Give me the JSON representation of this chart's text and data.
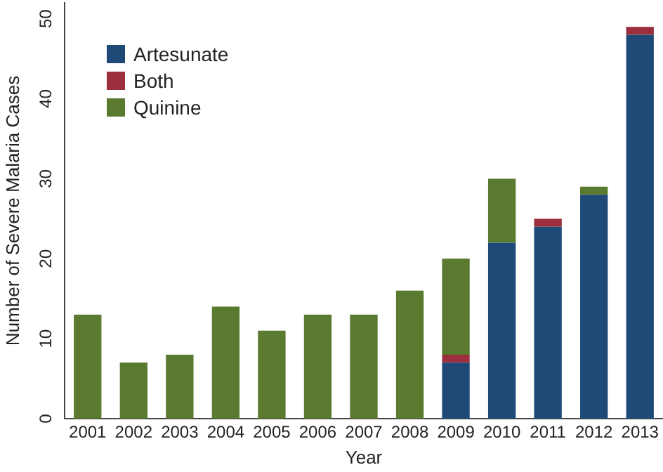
{
  "chart_data": {
    "type": "bar",
    "xlabel": "Year",
    "ylabel": "Number of Severe Malaria Cases",
    "categories": [
      "2001",
      "2002",
      "2003",
      "2004",
      "2005",
      "2006",
      "2007",
      "2008",
      "2009",
      "2010",
      "2011",
      "2012",
      "2013"
    ],
    "stacked": true,
    "series": [
      {
        "name": "Artesunate",
        "color": "#1f4a78",
        "values": [
          null,
          null,
          null,
          null,
          null,
          null,
          null,
          null,
          7,
          22,
          24,
          28,
          48
        ]
      },
      {
        "name": "Both",
        "color": "#9b2f3e",
        "values": [
          null,
          null,
          null,
          null,
          null,
          null,
          null,
          null,
          1,
          null,
          1,
          null,
          1
        ]
      },
      {
        "name": "Quinine",
        "color": "#5a7a2f",
        "values": [
          13,
          7,
          8,
          14,
          11,
          13,
          13,
          16,
          12,
          8,
          null,
          1,
          null
        ]
      }
    ],
    "ylim": [
      0,
      52
    ],
    "yticks": [
      0,
      10,
      20,
      30,
      40,
      50
    ],
    "grid": false,
    "legend": "top left"
  }
}
